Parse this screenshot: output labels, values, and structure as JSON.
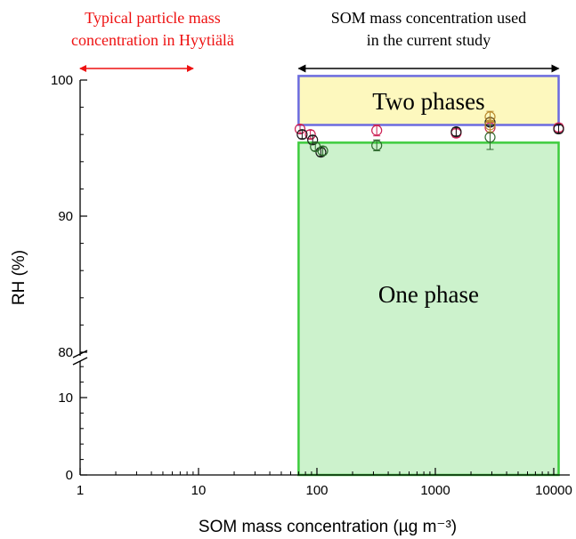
{
  "chart_data": {
    "type": "scatter",
    "xlabel": "SOM mass concentration (µg m⁻³)",
    "ylabel": "RH (%)",
    "x_scale": "log",
    "xlim": [
      1,
      12000
    ],
    "y_axis_break": true,
    "ylim_lower": [
      0,
      15
    ],
    "ylim_upper": [
      80,
      100.5
    ],
    "x_ticks": [
      1,
      10,
      100,
      1000,
      10000
    ],
    "y_ticks_lower": [
      0,
      10
    ],
    "y_ticks_upper": [
      80,
      90,
      100
    ],
    "x_tick_labels": [
      "1",
      "10",
      "100",
      "1000",
      "10000"
    ],
    "y_tick_labels_lower": [
      "0",
      "10"
    ],
    "y_tick_labels_upper": [
      "80",
      "90",
      "100"
    ],
    "annotations": {
      "left_label": [
        "Typical particle mass",
        "concentration in Hyytiälä"
      ],
      "left_range": [
        1,
        9
      ],
      "left_color": "#ee1111",
      "right_label": [
        "SOM mass concentration used",
        "in the current study"
      ],
      "right_range": [
        70,
        11000
      ],
      "right_color": "#000000"
    },
    "regions": [
      {
        "label": "Two phases",
        "x_range": [
          70,
          11000
        ],
        "y_range": [
          96.7,
          100.3
        ],
        "fill": "#fdf8be",
        "stroke": "#6b6bdf"
      },
      {
        "label": "One phase",
        "x_range": [
          70,
          11000
        ],
        "y_range": [
          0,
          95.4
        ],
        "fill": "#ccf2cc",
        "stroke": "#3dcc3d"
      }
    ],
    "series": [
      {
        "color": "#cc2255",
        "points": [
          {
            "x": 72,
            "y": 96.4,
            "err": 0.3
          },
          {
            "x": 88,
            "y": 96.0,
            "err": 0.3
          },
          {
            "x": 320,
            "y": 96.3,
            "err": 0.4
          },
          {
            "x": 1500,
            "y": 96.1,
            "err": 0.3
          },
          {
            "x": 2900,
            "y": 96.5,
            "err": 0.4
          },
          {
            "x": 11000,
            "y": 96.5,
            "err": 0.3
          }
        ]
      },
      {
        "color": "#1a1a1a",
        "points": [
          {
            "x": 75,
            "y": 96.0,
            "err": 0.3
          },
          {
            "x": 92,
            "y": 95.6,
            "err": 0.3
          },
          {
            "x": 108,
            "y": 94.7,
            "err": 0.3
          },
          {
            "x": 1500,
            "y": 96.2,
            "err": 0.3
          },
          {
            "x": 2900,
            "y": 96.9,
            "err": 0.3
          },
          {
            "x": 11000,
            "y": 96.4,
            "err": 0.3
          }
        ]
      },
      {
        "color": "#2d6a2d",
        "points": [
          {
            "x": 97,
            "y": 95.1,
            "err": 0.3
          },
          {
            "x": 112,
            "y": 94.8,
            "err": 0.3
          },
          {
            "x": 320,
            "y": 95.2,
            "err": 0.4
          },
          {
            "x": 2900,
            "y": 95.8,
            "err": 0.9
          }
        ]
      },
      {
        "color": "#b8892e",
        "points": [
          {
            "x": 2900,
            "y": 97.3,
            "err": 0.4
          },
          {
            "x": 2900,
            "y": 96.7,
            "err": 0.5
          }
        ]
      }
    ]
  }
}
